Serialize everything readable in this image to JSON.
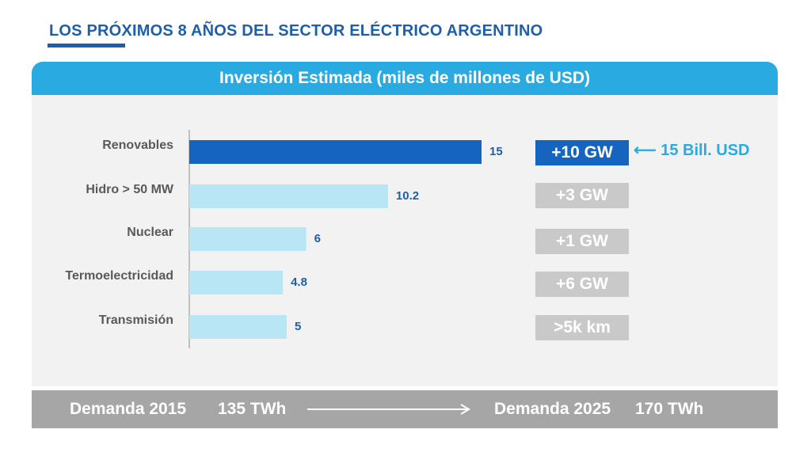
{
  "title": "LOS PRÓXIMOS 8 AÑOS DEL SECTOR ELÉCTRICO ARGENTINO",
  "panel_title": "Inversión Estimada (miles de millones de USD)",
  "colors": {
    "primary_bar": "#1565c0",
    "secondary_bar": "#b8e6f5",
    "header": "#29abe2",
    "value_label": "#1f5fa8"
  },
  "chart_data": {
    "type": "bar",
    "orientation": "horizontal",
    "title": "Inversión Estimada (miles de millones de USD)",
    "categories": [
      "Renovables",
      "Hidro > 50 MW",
      "Nuclear",
      "Termoelectricidad",
      "Transmisión"
    ],
    "values": [
      15,
      10.2,
      6,
      4.8,
      5
    ],
    "value_labels": [
      "15",
      "10.2",
      "6",
      "4.8",
      "5"
    ],
    "highlight_index": 0,
    "xlim": [
      0,
      15
    ]
  },
  "capacity_boxes": [
    "+10 GW",
    "+3 GW",
    "+1 GW",
    "+6 GW",
    ">5k km"
  ],
  "callout": {
    "arrow": "⟵",
    "text": "15 Bill. USD"
  },
  "footer": {
    "demand_2015_label": "Demanda 2015",
    "demand_2015_value": "135 TWh",
    "demand_2025_label": "Demanda 2025",
    "demand_2025_value": "170 TWh"
  }
}
